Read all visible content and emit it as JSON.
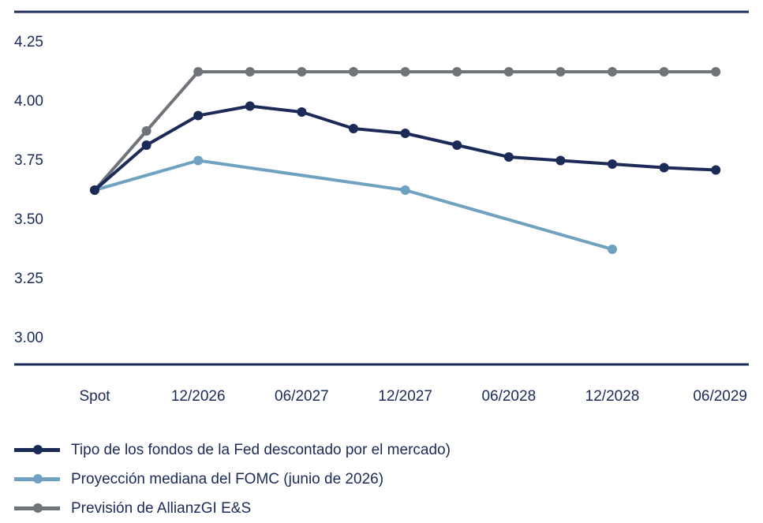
{
  "chart_data": {
    "type": "line",
    "x": [
      "Spot",
      "",
      "12/2026",
      "",
      "06/2027",
      "",
      "12/2027",
      "",
      "06/2028",
      "",
      "12/2028",
      "",
      "06/2029"
    ],
    "x_tick_labels": [
      "Spot",
      "12/2026",
      "06/2027",
      "12/2027",
      "06/2028",
      "12/2028",
      "06/2029"
    ],
    "y_ticks": [
      "3.00",
      "3.25",
      "3.50",
      "3.75",
      "4.00",
      "4.25"
    ],
    "ylim": [
      2.88,
      4.38
    ],
    "grid": false,
    "legend_position": "bottom-left",
    "series": [
      {
        "name": "Tipo de los fondos de la Fed descontado por el mercado)",
        "color": "#1b2a57",
        "points": [
          [
            0,
            3.62
          ],
          [
            1,
            3.81
          ],
          [
            2,
            3.935
          ],
          [
            3,
            3.975
          ],
          [
            4,
            3.95
          ],
          [
            5,
            3.88
          ],
          [
            6,
            3.86
          ],
          [
            7,
            3.81
          ],
          [
            8,
            3.76
          ],
          [
            9,
            3.745
          ],
          [
            10,
            3.73
          ],
          [
            11,
            3.715
          ],
          [
            12,
            3.705
          ]
        ]
      },
      {
        "name": "Proyección mediana del FOMC (junio de 2026)",
        "color": "#6fa1c0",
        "points": [
          [
            0,
            3.62
          ],
          [
            2,
            3.745
          ],
          [
            6,
            3.62
          ],
          [
            10,
            3.37
          ]
        ]
      },
      {
        "name": "Previsión de AllianzGI E&S",
        "color": "#6e7479",
        "points": [
          [
            0,
            3.62
          ],
          [
            1,
            3.87
          ],
          [
            2,
            4.12
          ],
          [
            3,
            4.12
          ],
          [
            4,
            4.12
          ],
          [
            5,
            4.12
          ],
          [
            6,
            4.12
          ],
          [
            7,
            4.12
          ],
          [
            8,
            4.12
          ],
          [
            9,
            4.12
          ],
          [
            10,
            4.12
          ],
          [
            11,
            4.12
          ],
          [
            12,
            4.12
          ]
        ]
      }
    ]
  }
}
